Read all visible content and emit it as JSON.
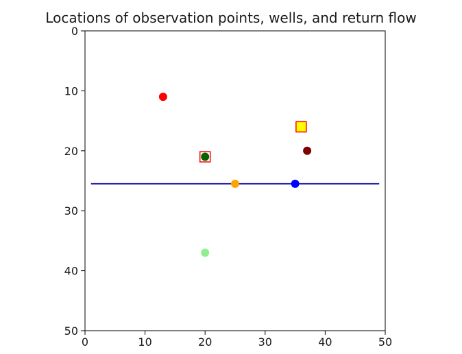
{
  "chart_data": {
    "type": "scatter",
    "title": "Locations of observation points, wells, and return flow",
    "xlabel": "",
    "ylabel": "",
    "xlim": [
      0,
      50
    ],
    "ylim": [
      50,
      0
    ],
    "y_inverted": true,
    "x_ticks": [
      0,
      10,
      20,
      30,
      40,
      50
    ],
    "y_ticks": [
      0,
      10,
      20,
      30,
      40,
      50
    ],
    "grid": false,
    "points": [
      {
        "x": 13,
        "y": 11,
        "color": "#ff0000",
        "marker": "circle"
      },
      {
        "x": 20,
        "y": 21,
        "color": "#006400",
        "marker": "circle"
      },
      {
        "x": 25,
        "y": 25.5,
        "color": "#ffa500",
        "marker": "circle"
      },
      {
        "x": 35,
        "y": 25.5,
        "color": "#0000ff",
        "marker": "circle"
      },
      {
        "x": 37,
        "y": 20,
        "color": "#800000",
        "marker": "circle"
      },
      {
        "x": 20,
        "y": 37,
        "color": "#90ee90",
        "marker": "circle"
      },
      {
        "x": 20,
        "y": 21,
        "color": "none",
        "edge": "#ff0000",
        "marker": "square"
      },
      {
        "x": 36,
        "y": 16,
        "color": "#ffff00",
        "edge": "#ff0000",
        "marker": "square"
      }
    ],
    "lines": [
      {
        "x": [
          1,
          49
        ],
        "y": [
          25.5,
          25.5
        ],
        "color": "#2222aa"
      }
    ]
  }
}
